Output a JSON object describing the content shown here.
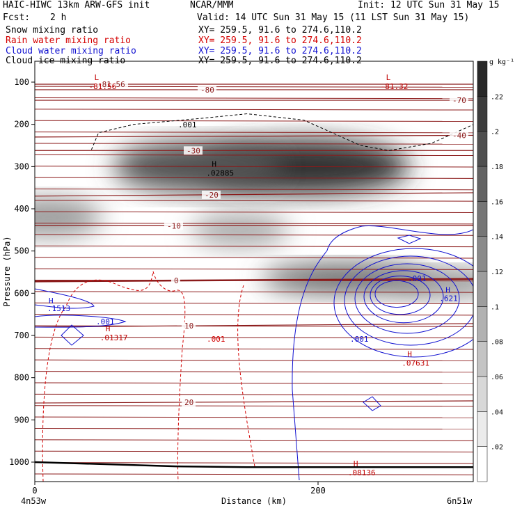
{
  "header": {
    "model": "HAIC-HIWC 13km ARW-GFS init",
    "org": "NCAR/MMM",
    "init": "Init: 12 UTC Sun 31 May 15",
    "fcst_label": "Fcst:",
    "fcst_value": "2 h",
    "valid": "Valid: 14 UTC Sun 31 May 15 (11 LST Sun 31 May 15)"
  },
  "legend": [
    {
      "name": "Snow mixing ratio",
      "xy": "XY= 259.5, 91.6 to 274.6,110.2",
      "color": "#000000"
    },
    {
      "name": "Rain water mixing ratio",
      "xy": "XY= 259.5, 91.6 to 274.6,110.2",
      "color": "#d40000"
    },
    {
      "name": "Cloud water mixing ratio",
      "xy": "XY= 259.5, 91.6 to 274.6,110.2",
      "color": "#1010d0"
    },
    {
      "name": "Cloud ice mixing ratio",
      "xy": "XY= 259.5, 91.6 to 274.6,110.2",
      "color": "#000000"
    }
  ],
  "chart_data": {
    "type": "heatmap",
    "xlabel": "Distance (km)",
    "ylabel": "Pressure (hPa)",
    "xlim": [
      0,
      310
    ],
    "ylim": [
      1050,
      60
    ],
    "x_ticks": [
      {
        "v": 0,
        "label": "0"
      },
      {
        "v": 200,
        "label": "200"
      }
    ],
    "y_ticks": [
      100,
      200,
      300,
      400,
      500,
      600,
      700,
      800,
      900,
      1000
    ],
    "x_end_labels": {
      "left": "4n53w",
      "right": "6n51w"
    },
    "colorbar": {
      "unit": "g kg⁻¹",
      "levels": [
        0.02,
        0.04,
        0.06,
        0.08,
        0.1,
        0.12,
        0.14,
        0.16,
        0.18,
        0.2,
        0.22
      ],
      "labels": [
        ".02",
        ".04",
        ".06",
        ".08",
        ".1",
        ".12",
        ".14",
        ".16",
        ".18",
        ".2",
        ".22"
      ]
    },
    "shading_blobs": [
      {
        "x": 190,
        "p": 300,
        "rx": 75,
        "rp": 65,
        "v": 0.24
      },
      {
        "x": 115,
        "p": 300,
        "rx": 60,
        "rp": 60,
        "v": 0.2
      },
      {
        "x": 10,
        "p": 420,
        "rx": 38,
        "rp": 45,
        "v": 0.12
      },
      {
        "x": 220,
        "p": 565,
        "rx": 60,
        "rp": 35,
        "v": 0.18
      },
      {
        "x": 290,
        "p": 575,
        "rx": 40,
        "rp": 30,
        "v": 0.14
      },
      {
        "x": 145,
        "p": 450,
        "rx": 35,
        "rp": 40,
        "v": 0.1
      }
    ],
    "temperature_lines": [
      {
        "label": "-81.56",
        "p": [
          105,
          105
        ]
      },
      {
        "label": "-80",
        "p": [
          118,
          118
        ]
      },
      {
        "label": "-70",
        "p": [
          143,
          143
        ]
      },
      {
        "label": "-40",
        "p": [
          230,
          226
        ]
      },
      {
        "label": "-30",
        "p": [
          262,
          262
        ]
      },
      {
        "label": "-20",
        "p": [
          370,
          362
        ]
      },
      {
        "label": "-10",
        "p": [
          440,
          440
        ]
      },
      {
        "label": "0",
        "p": [
          572,
          566
        ]
      },
      {
        "label": "10",
        "p": [
          680,
          672
        ]
      },
      {
        "label": "20",
        "p": [
          860,
          855
        ]
      }
    ],
    "temp_extrema": [
      {
        "type": "L",
        "label": "-81.56",
        "x": 42,
        "p": 105
      },
      {
        "type": "L",
        "label": "-81.32",
        "x": 248,
        "p": 105
      },
      {
        "type": "H",
        "label": ".02885",
        "x": 125,
        "p": 310
      },
      {
        "type": "H",
        "label": ".01317",
        "x": 50,
        "p": 700
      },
      {
        "type": "H",
        "label": ".07631",
        "x": 263,
        "p": 760
      },
      {
        "type": "H",
        "label": ".08136",
        "x": 225,
        "p": 1020
      }
    ],
    "cloud_ice_contour": {
      "value": ".001",
      "points": [
        [
          40,
          260
        ],
        [
          45,
          220
        ],
        [
          70,
          200
        ],
        [
          120,
          185
        ],
        [
          150,
          175
        ],
        [
          190,
          190
        ],
        [
          200,
          205
        ],
        [
          230,
          250
        ],
        [
          250,
          262
        ],
        [
          280,
          245
        ],
        [
          310,
          200
        ]
      ]
    },
    "rain_water_contours": [
      {
        "value": ".001",
        "x": [
          0,
          300
        ]
      }
    ],
    "cloud_water_max": {
      "label": ".621",
      "x": 265,
      "p": 615
    },
    "cloud_water_small_max": {
      "label": ".1513",
      "x": 10,
      "p": 625
    },
    "surface_pressure": [
      1000,
      1005,
      1010,
      1012,
      1012,
      1012,
      1012
    ],
    "surface_x": [
      0,
      50,
      100,
      150,
      200,
      250,
      310
    ]
  }
}
